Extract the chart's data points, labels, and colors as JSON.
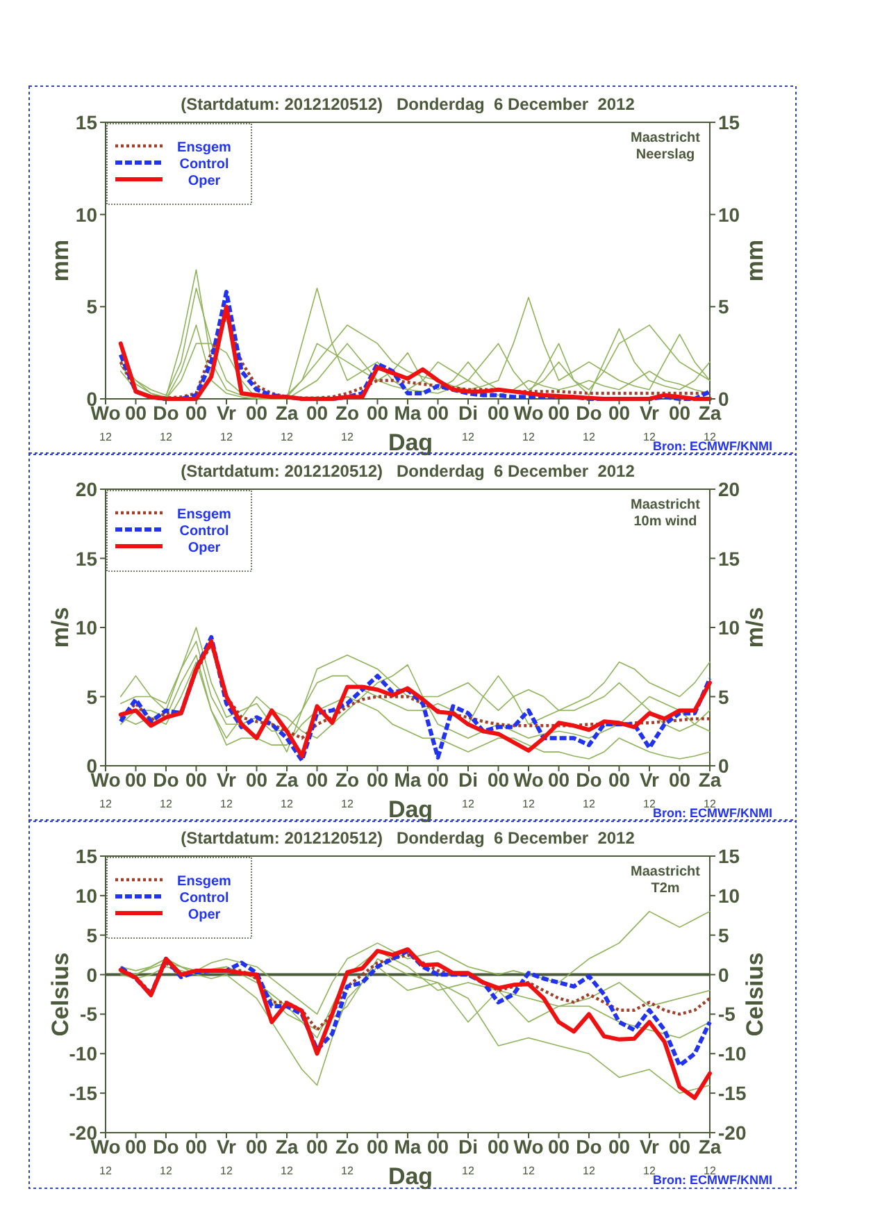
{
  "chart_data": [
    {
      "type": "line",
      "title": "(Startdatum: 2012120512)   Donderdag  6 December  2012",
      "xlabel": "Dag",
      "ylabel": "mm",
      "y2label": "mm",
      "annotations": [
        "Maastricht\nNeerslag",
        "Bron: ECMWF/KNMI"
      ],
      "legend": "top left",
      "categories": [
        "Wo$_{12}$",
        null,
        "00",
        null,
        "Do$_{12}$",
        null,
        "00",
        null,
        "Vr$_{12}$",
        null,
        "00",
        null,
        "Za$_{12}$",
        null,
        "00",
        null,
        "Zo$_{12}$",
        null,
        "00",
        null,
        "Ma",
        null,
        "00",
        null,
        "Di$_{12}$",
        null,
        "00",
        null,
        "Wo$_{12}$",
        null,
        "00",
        null,
        "Do$_{12}$",
        null,
        "00",
        null,
        "Vr$_{12}$",
        null,
        "00",
        null,
        "Za$_{12}$"
      ],
      "ylim": [
        0,
        15
      ],
      "yticks": [
        0,
        5,
        10,
        15
      ],
      "y2lim": [
        0,
        15
      ],
      "y2ticks": [
        0,
        5,
        10,
        15
      ],
      "series": [
        {
          "color": "#8fb35a",
          "values": [
            null,
            2,
            1,
            0.5,
            0.2,
            2,
            6,
            3,
            1,
            0.3,
            0,
            0,
            0,
            3,
            6,
            3,
            1,
            1.5,
            2,
            1,
            0.5,
            0.4,
            0.3,
            0.6,
            1,
            2,
            3,
            1.5,
            0.5,
            1,
            2,
            1,
            0.5,
            1.5,
            3,
            3.5,
            4,
            3,
            2,
            1.5,
            1
          ]
        },
        {
          "color": "#8fb35a",
          "values": [
            null,
            1.5,
            0.5,
            0.2,
            0,
            1,
            3,
            3,
            2.5,
            1,
            0,
            0,
            0.2,
            1,
            2,
            3,
            4,
            3.5,
            3,
            2,
            1.5,
            1.2,
            1,
            0.7,
            0.5,
            0.7,
            1,
            3,
            5.5,
            3,
            1,
            1.5,
            2,
            1.5,
            1,
            0.7,
            0.5,
            2,
            3.5,
            2,
            1
          ]
        },
        {
          "color": "#8fb35a",
          "values": [
            null,
            1.8,
            0.8,
            0.3,
            0.1,
            3,
            7,
            2,
            0.5,
            0.2,
            0.1,
            0,
            0,
            0.5,
            1,
            2,
            3,
            2,
            1,
            1.5,
            2.5,
            1,
            0.5,
            1,
            2,
            1,
            0.5,
            0.4,
            0.3,
            1.5,
            3,
            1,
            0.2,
            2,
            3.8,
            2,
            1,
            0.7,
            0.5,
            1,
            2
          ]
        },
        {
          "color": "#8fb35a",
          "values": [
            null,
            null,
            1,
            0.3,
            0,
            1.5,
            4,
            1,
            0.3,
            0.1,
            0,
            0,
            0.1,
            1,
            3,
            2.5,
            2,
            1.5,
            1,
            0.7,
            0.5,
            1,
            2,
            1.5,
            1,
            0.5,
            0.2,
            0.5,
            1,
            0.7,
            0.5,
            0.7,
            1,
            0.7,
            0.5,
            1,
            1.5,
            1,
            0.8,
            0.5,
            0.3
          ]
        },
        {
          "name": "Ensgem",
          "color": "#a0402a",
          "line_style": "dotted",
          "values": [
            null,
            2,
            0.4,
            0.1,
            0.05,
            0.1,
            0.3,
            2.5,
            4.5,
            2,
            0.7,
            0.3,
            0.1,
            0.05,
            0.05,
            0.1,
            0.3,
            0.6,
            1,
            1,
            0.9,
            0.8,
            0.7,
            0.6,
            0.5,
            0.5,
            0.5,
            0.4,
            0.4,
            0.4,
            0.4,
            0.35,
            0.3,
            0.3,
            0.3,
            0.3,
            0.3,
            0.3,
            0.3,
            0.3,
            0.3
          ]
        },
        {
          "name": "Control",
          "color": "#2233ee",
          "line_style": "dashed",
          "values": [
            null,
            2.4,
            0.4,
            0.1,
            0,
            0,
            0.2,
            2,
            5.8,
            1.5,
            0.5,
            0.2,
            0.1,
            0,
            0,
            0,
            0.1,
            0.3,
            1.9,
            1.5,
            0.3,
            0.3,
            0.7,
            0.5,
            0.3,
            0.2,
            0.2,
            0.1,
            0.1,
            0.1,
            0.1,
            0.1,
            0,
            0,
            0,
            0,
            0,
            0.1,
            0,
            0,
            0.4
          ]
        },
        {
          "name": "Oper",
          "color": "#ee1111",
          "line_style": "solid",
          "values": [
            null,
            3,
            0.4,
            0.1,
            0,
            0,
            0,
            1.2,
            5,
            0.3,
            0.2,
            0.1,
            0.1,
            0,
            0,
            0,
            0.1,
            0.1,
            1.7,
            1.4,
            1.1,
            1.6,
            1,
            0.5,
            0.4,
            0.4,
            0.5,
            0.4,
            0.3,
            0.2,
            0.15,
            0.1,
            0.05,
            0,
            0,
            0,
            0,
            0.2,
            0.1,
            0,
            0
          ]
        }
      ]
    },
    {
      "type": "line",
      "title": "(Startdatum: 2012120512)   Donderdag  6 December  2012",
      "xlabel": "Dag",
      "ylabel": "m/s",
      "y2label": "m/s",
      "annotations": [
        "Maastricht\n10m wind",
        "Bron: ECMWF/KNMI"
      ],
      "legend": "top left",
      "categories": [
        "Wo$_{12}$",
        null,
        "00",
        null,
        "Do$_{12}$",
        null,
        "00",
        null,
        "Vr$_{12}$",
        null,
        "00",
        null,
        "Za$_{12}$",
        null,
        "00",
        null,
        "Zo$_{12}$",
        null,
        "00",
        null,
        "Ma",
        null,
        "00",
        null,
        "Di$_{12}$",
        null,
        "00",
        null,
        "Wo$_{12}$",
        null,
        "00",
        null,
        "Do$_{12}$",
        null,
        "00",
        null,
        "Vr$_{12}$",
        null,
        "00",
        null,
        "Za$_{12}$"
      ],
      "ylim": [
        0,
        20
      ],
      "yticks": [
        0,
        5,
        10,
        15,
        20
      ],
      "y2lim": [
        0,
        20
      ],
      "y2ticks": [
        0,
        5,
        10,
        15,
        20
      ],
      "series": [
        {
          "color": "#8fb35a",
          "values": [
            null,
            4.5,
            5,
            5,
            4.5,
            7,
            10,
            6,
            3.5,
            4,
            4.5,
            3,
            1,
            4,
            7,
            7.5,
            8,
            7.5,
            7,
            6,
            5,
            5,
            5,
            5.5,
            6,
            5,
            4,
            5,
            5.5,
            5,
            4,
            4.5,
            5,
            6,
            7.5,
            7,
            6,
            5.5,
            5,
            6,
            7.5
          ]
        },
        {
          "color": "#8fb35a",
          "values": [
            null,
            3,
            4,
            4,
            3.5,
            6,
            8,
            4,
            1.5,
            2,
            2,
            1.5,
            1.5,
            3,
            4,
            4.5,
            5,
            4.5,
            4,
            3,
            2.5,
            2,
            2,
            1.5,
            1,
            1.5,
            2,
            2,
            1.5,
            1,
            1,
            0.7,
            0.5,
            1,
            2,
            1.5,
            1,
            0.7,
            0.5,
            0.7,
            1
          ]
        },
        {
          "color": "#8fb35a",
          "values": [
            null,
            5,
            6.5,
            5,
            4,
            7,
            9,
            5,
            3,
            3,
            3.5,
            2.5,
            2.6,
            4,
            6,
            6.5,
            6.5,
            5.5,
            5,
            4.5,
            4,
            4,
            4.5,
            4,
            3,
            5,
            6.5,
            5,
            3,
            3.5,
            4,
            4,
            4.5,
            5,
            6,
            5,
            4,
            3,
            2.5,
            3,
            4
          ]
        },
        {
          "color": "#8fb35a",
          "values": [
            null,
            3.5,
            3,
            3.5,
            3,
            5,
            7.5,
            4,
            2,
            3.5,
            5,
            4,
            3.5,
            2.5,
            2,
            3,
            4,
            5,
            6,
            6.5,
            7.3,
            5,
            3,
            2.5,
            2,
            2.5,
            3,
            2.5,
            2,
            2.3,
            2.5,
            2.3,
            2,
            2.5,
            3,
            4,
            5,
            4.5,
            4,
            3,
            2.5
          ]
        },
        {
          "name": "Ensgem",
          "color": "#a0402a",
          "line_style": "dotted",
          "values": [
            null,
            3.4,
            4.5,
            3.3,
            3.8,
            3.9,
            6.8,
            8.8,
            5,
            3.5,
            3.2,
            3,
            2.5,
            2,
            3,
            3.5,
            4.3,
            4.8,
            5,
            5,
            5,
            4.5,
            4,
            3.7,
            3.5,
            3.2,
            3,
            2.9,
            2.9,
            2.9,
            2.9,
            2.9,
            3,
            3,
            3,
            3.1,
            3.1,
            3.2,
            3.3,
            3.4,
            3.4
          ]
        },
        {
          "name": "Control",
          "color": "#2233ee",
          "line_style": "dashed",
          "values": [
            null,
            3.2,
            4.8,
            3.2,
            4,
            3.8,
            7,
            9.3,
            4.5,
            2.8,
            3.5,
            3,
            2,
            0.4,
            3.8,
            4,
            4.5,
            5.5,
            6.5,
            5.3,
            5.5,
            4.5,
            0.6,
            4.3,
            3.8,
            2.5,
            2.8,
            2.8,
            4,
            2,
            2,
            2,
            1.5,
            3,
            3,
            3,
            1.3,
            3,
            3.8,
            3.8,
            6.3
          ]
        },
        {
          "name": "Oper",
          "color": "#ee1111",
          "line_style": "solid",
          "values": [
            null,
            3.7,
            4,
            2.9,
            3.5,
            3.8,
            7,
            9,
            5,
            3,
            2,
            4,
            2.5,
            0.7,
            4.3,
            3.1,
            5.7,
            5.7,
            5.5,
            5.1,
            5.6,
            4.8,
            3.9,
            3.8,
            3,
            2.5,
            2.3,
            1.7,
            1.1,
            2,
            3.1,
            2.9,
            2.6,
            3.2,
            3.1,
            2.8,
            3.8,
            3.4,
            4,
            4,
            6
          ]
        }
      ]
    },
    {
      "type": "line",
      "title": "(Startdatum: 2012120512)   Donderdag  6 December  2012",
      "xlabel": "Dag",
      "ylabel": "Celsius",
      "y2label": "Celsius",
      "annotations": [
        "Maastricht\nT2m",
        "Bron: ECMWF/KNMI"
      ],
      "legend": "top left",
      "ref_lines": [
        {
          "axis": "y",
          "value": 0,
          "color": "#4b5a3b"
        }
      ],
      "categories": [
        "Wo$_{12}$",
        null,
        "00",
        null,
        "Do$_{12}$",
        null,
        "00",
        null,
        "Vr$_{12}$",
        null,
        "00",
        null,
        "Za$_{12}$",
        null,
        "00",
        null,
        "Zo$_{12}$",
        null,
        "00",
        null,
        "Ma",
        null,
        "00",
        null,
        "Di$_{12}$",
        null,
        "00",
        null,
        "Wo$_{12}$",
        null,
        "00",
        null,
        "Do$_{12}$",
        null,
        "00",
        null,
        "Vr$_{12}$",
        null,
        "00",
        null,
        "Za$_{12}$"
      ],
      "ylim": [
        -20,
        15
      ],
      "yticks": [
        -20,
        -15,
        -10,
        -5,
        0,
        5,
        10,
        15
      ],
      "y2lim": [
        -20,
        15
      ],
      "y2ticks": [
        -20,
        -15,
        -10,
        -5,
        0,
        5,
        10,
        15
      ],
      "series": [
        {
          "color": "#8fb35a",
          "values": [
            null,
            1,
            0.5,
            1,
            2,
            1,
            0.5,
            1.5,
            2,
            1.5,
            1,
            -0.5,
            -2,
            -3.5,
            -5,
            -1,
            2,
            3,
            4,
            3,
            2,
            2.5,
            3,
            2,
            1,
            0.5,
            0,
            0.5,
            0,
            -0.5,
            -1,
            0.5,
            2,
            3,
            4,
            6,
            8,
            7,
            6,
            7,
            8
          ]
        },
        {
          "color": "#8fb35a",
          "values": [
            null,
            0,
            -0.5,
            0,
            1,
            0.5,
            0,
            -0.5,
            0,
            -1.5,
            -3,
            -6,
            -9,
            -12,
            -14,
            -8,
            -3,
            -1,
            1,
            -0.5,
            -2,
            -1.5,
            -1,
            -2,
            -3,
            -6,
            -9,
            -8.5,
            -8,
            -8.5,
            -9,
            -9.5,
            -10,
            -11.5,
            -13,
            -12.5,
            -12,
            -13.5,
            -15,
            -14.5,
            -14
          ]
        },
        {
          "color": "#8fb35a",
          "values": [
            null,
            0.5,
            0,
            1,
            2,
            1,
            0,
            0.5,
            1,
            0,
            -1,
            -2.5,
            -4,
            -6,
            -8,
            -4,
            0,
            1.5,
            3,
            2,
            1,
            -0.5,
            -2,
            -1.5,
            -1,
            -1.5,
            -2,
            -2.5,
            -3,
            -3.5,
            -4,
            -4,
            -4,
            -5,
            -6,
            -6.5,
            -7,
            -7.5,
            -8,
            -7,
            -6
          ]
        },
        {
          "color": "#8fb35a",
          "values": [
            null,
            0.3,
            0,
            0.8,
            1.5,
            1,
            0.5,
            0.7,
            1,
            0.2,
            -0.5,
            -3,
            -5,
            -6,
            -7,
            -5.5,
            -4,
            -1,
            2,
            1,
            0,
            -0.5,
            -1,
            -3.5,
            -6,
            -4,
            -2,
            -4,
            -6,
            -5,
            -4,
            -3.5,
            -3,
            -2,
            -1,
            -2.5,
            -4,
            -3.5,
            -3,
            -2.5,
            -2
          ]
        },
        {
          "name": "Ensgem",
          "color": "#a0402a",
          "line_style": "dotted",
          "values": [
            null,
            0.5,
            -0.3,
            -2.3,
            1.5,
            -0.2,
            0.3,
            0.5,
            0.6,
            0.5,
            -0.5,
            -3.5,
            -3.5,
            -4.5,
            -7,
            -5,
            -1.5,
            0,
            1.5,
            2,
            2.5,
            1.5,
            0.5,
            0,
            0,
            -1,
            -2,
            -1.5,
            -1,
            -2,
            -3,
            -3.5,
            -2.5,
            -3.5,
            -4.5,
            -4.5,
            -3.5,
            -4.5,
            -5,
            -4.5,
            -3
          ]
        },
        {
          "name": "Control",
          "color": "#2233ee",
          "line_style": "dashed",
          "values": [
            null,
            0.9,
            -0.5,
            -2.5,
            2,
            -0.3,
            0.3,
            0.5,
            0.5,
            1.5,
            0.2,
            -4,
            -4,
            -5,
            -9.5,
            -7.5,
            -1.5,
            -1,
            1,
            2,
            3,
            1,
            0,
            0,
            0,
            -1,
            -3.5,
            -2.5,
            0.2,
            -0.5,
            -1,
            -1.5,
            -0.2,
            -2.5,
            -6,
            -7,
            -4.5,
            -7,
            -11.5,
            -10,
            -6
          ]
        },
        {
          "name": "Oper",
          "color": "#ee1111",
          "line_style": "solid",
          "values": [
            null,
            0.6,
            -0.4,
            -2.6,
            2,
            0,
            0.5,
            0.5,
            0.5,
            0.2,
            0,
            -6,
            -3.6,
            -4.6,
            -10,
            -5,
            0.3,
            0.8,
            3,
            2.5,
            3.2,
            1.2,
            1.3,
            0.2,
            0.2,
            -1,
            -1.7,
            -1.3,
            -1.2,
            -3,
            -6,
            -7.2,
            -5,
            -7.8,
            -8.2,
            -8.1,
            -6,
            -8.5,
            -14.2,
            -15.6,
            -12.5
          ]
        }
      ]
    }
  ]
}
